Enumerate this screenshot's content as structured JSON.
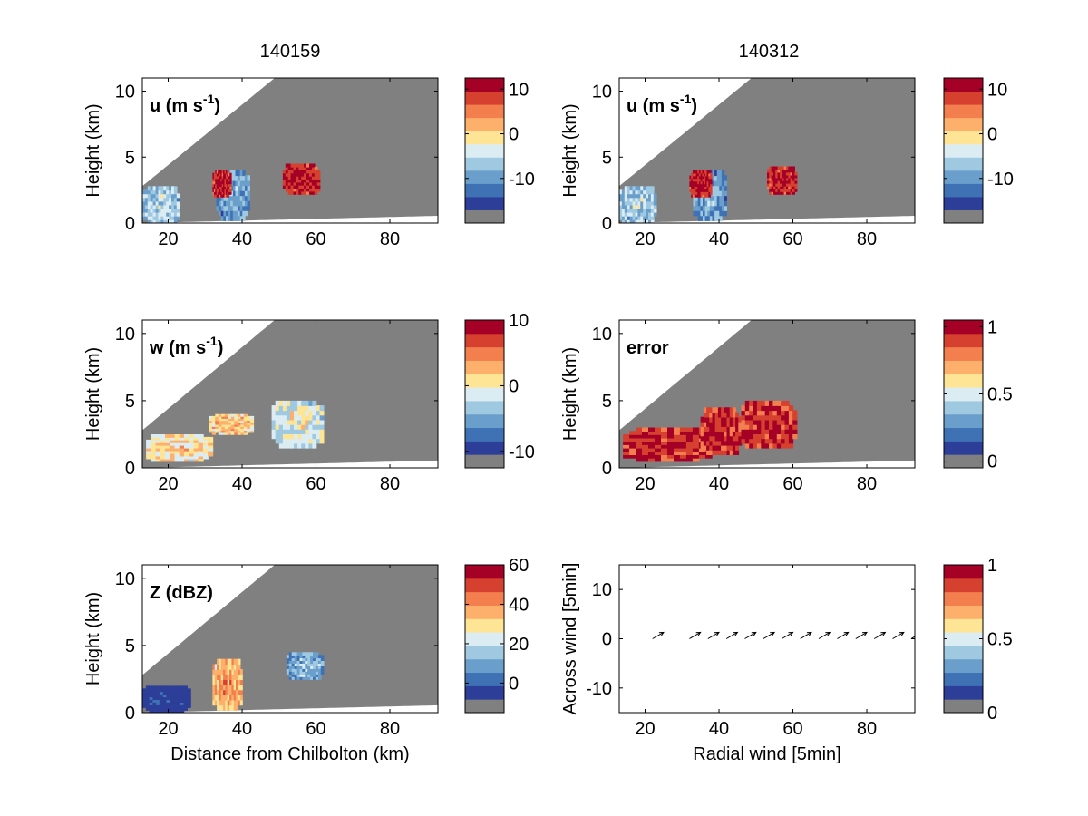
{
  "figure": {
    "column_titles": [
      "140159",
      "140312"
    ],
    "cbar_colors": [
      "#808080",
      "#2d3e98",
      "#3f72b5",
      "#6b9fcb",
      "#9fc9e1",
      "#dcecf3",
      "#fde595",
      "#fdb06b",
      "#f37e4e",
      "#d6402f",
      "#a50026"
    ],
    "sector_color": "#808080",
    "panels": [
      {
        "id": "u-140159",
        "label": "u (m s",
        "label_sup": "-1",
        "label_tail": ")",
        "ylabel": "Height (km)",
        "xlabel": "",
        "xticks": [
          "20",
          "40",
          "60",
          "80"
        ],
        "yticks": [
          "0",
          "5",
          "10"
        ],
        "cbar_ticks": [
          {
            "value": 10,
            "label": "10"
          },
          {
            "value": 0,
            "label": "0"
          },
          {
            "value": -10,
            "label": "-10"
          }
        ],
        "cbar_range": [
          -20,
          12.5
        ]
      },
      {
        "id": "u-140312",
        "label": "u (m s",
        "label_sup": "-1",
        "label_tail": ")",
        "ylabel": "Height (km)",
        "xlabel": "",
        "xticks": [
          "20",
          "40",
          "60",
          "80"
        ],
        "yticks": [
          "0",
          "5",
          "10"
        ],
        "cbar_ticks": [
          {
            "value": 10,
            "label": "10"
          },
          {
            "value": 0,
            "label": "0"
          },
          {
            "value": -10,
            "label": "-10"
          }
        ],
        "cbar_range": [
          -20,
          12.5
        ]
      },
      {
        "id": "w-140159",
        "label": "w (m s",
        "label_sup": "-1",
        "label_tail": ")",
        "ylabel": "Height (km)",
        "xlabel": "",
        "xticks": [
          "20",
          "40",
          "60",
          "80"
        ],
        "yticks": [
          "0",
          "5",
          "10"
        ],
        "cbar_ticks": [
          {
            "value": 10,
            "label": "10"
          },
          {
            "value": 0,
            "label": "0"
          },
          {
            "value": -10,
            "label": "-10"
          }
        ],
        "cbar_range": [
          -12.5,
          10
        ]
      },
      {
        "id": "error-140312",
        "label": "error",
        "label_sup": "",
        "label_tail": "",
        "ylabel": "Height (km)",
        "xlabel": "",
        "xticks": [
          "20",
          "40",
          "60",
          "80"
        ],
        "yticks": [
          "0",
          "5",
          "10"
        ],
        "cbar_ticks": [
          {
            "value": 1,
            "label": "1"
          },
          {
            "value": 0.5,
            "label": "0.5"
          },
          {
            "value": 0,
            "label": "0"
          }
        ],
        "cbar_range": [
          -0.05,
          1.05
        ]
      },
      {
        "id": "z-140159",
        "label": "Z (dBZ)",
        "label_sup": "",
        "label_tail": "",
        "ylabel": "Height (km)",
        "xlabel": "Distance from Chilbolton (km)",
        "xticks": [
          "20",
          "40",
          "60",
          "80"
        ],
        "yticks": [
          "0",
          "5",
          "10"
        ],
        "cbar_ticks": [
          {
            "value": 60,
            "label": "60"
          },
          {
            "value": 40,
            "label": "40"
          },
          {
            "value": 20,
            "label": "20"
          },
          {
            "value": 0,
            "label": "0"
          }
        ],
        "cbar_range": [
          -15,
          60
        ]
      },
      {
        "id": "wind-arrows",
        "label": "",
        "label_sup": "",
        "label_tail": "",
        "ylabel": "Across wind [5min]",
        "xlabel": "Radial wind [5min]",
        "xticks": [
          "20",
          "40",
          "60",
          "80"
        ],
        "yticks": [
          "10",
          "0",
          "-10"
        ],
        "cbar_ticks": [
          {
            "value": 1,
            "label": "1"
          },
          {
            "value": 0.5,
            "label": "0.5"
          },
          {
            "value": 0,
            "label": "0"
          }
        ],
        "cbar_range": [
          0,
          1
        ]
      }
    ]
  },
  "chart_data": [
    {
      "type": "heatmap",
      "title": "140159",
      "label": "u (m s-1)",
      "xlabel": "",
      "ylabel": "Height (km)",
      "xlim": [
        13,
        93
      ],
      "ylim": [
        0,
        11
      ],
      "colorbar": {
        "ticks": [
          10,
          0,
          -10
        ],
        "range": [
          -20,
          12.5
        ]
      },
      "features": [
        {
          "x_range": [
            13,
            23
          ],
          "z_range": [
            0,
            2.8
          ],
          "value": -5
        },
        {
          "x_range": [
            33,
            42
          ],
          "z_range": [
            0.2,
            4
          ],
          "value": -8
        },
        {
          "x_range": [
            32,
            37
          ],
          "z_range": [
            2,
            4
          ],
          "value": 12
        },
        {
          "x_range": [
            51,
            61
          ],
          "z_range": [
            2.2,
            4.5
          ],
          "value": 12
        }
      ]
    },
    {
      "type": "heatmap",
      "title": "140312",
      "label": "u (m s-1)",
      "xlabel": "",
      "ylabel": "Height (km)",
      "xlim": [
        13,
        93
      ],
      "ylim": [
        0,
        11
      ],
      "colorbar": {
        "ticks": [
          10,
          0,
          -10
        ],
        "range": [
          -20,
          12.5
        ]
      },
      "features": [
        {
          "x_range": [
            13,
            23
          ],
          "z_range": [
            0,
            2.8
          ],
          "value": -5
        },
        {
          "x_range": [
            33,
            42
          ],
          "z_range": [
            0.2,
            4
          ],
          "value": -8
        },
        {
          "x_range": [
            32,
            38
          ],
          "z_range": [
            2,
            4
          ],
          "value": 12
        },
        {
          "x_range": [
            53,
            61
          ],
          "z_range": [
            2.2,
            4.3
          ],
          "value": 12
        }
      ]
    },
    {
      "type": "heatmap",
      "title": "",
      "label": "w (m s-1)",
      "xlabel": "",
      "ylabel": "Height (km)",
      "xlim": [
        13,
        93
      ],
      "ylim": [
        0,
        11
      ],
      "colorbar": {
        "ticks": [
          10,
          0,
          -10
        ],
        "range": [
          -12.5,
          10
        ]
      },
      "features": [
        {
          "x_range": [
            14,
            32
          ],
          "z_range": [
            0.5,
            2.5
          ],
          "value": 2
        },
        {
          "x_range": [
            31,
            43
          ],
          "z_range": [
            2.5,
            4
          ],
          "value": 3
        },
        {
          "x_range": [
            48,
            62
          ],
          "z_range": [
            1.5,
            5
          ],
          "value": 0
        }
      ]
    },
    {
      "type": "heatmap",
      "title": "",
      "label": "error",
      "xlabel": "",
      "ylabel": "Height (km)",
      "xlim": [
        13,
        93
      ],
      "ylim": [
        0,
        11
      ],
      "colorbar": {
        "ticks": [
          1,
          0.5,
          0
        ],
        "range": [
          -0.05,
          1.05
        ]
      },
      "features": [
        {
          "x_range": [
            14,
            38
          ],
          "z_range": [
            0.5,
            3
          ],
          "value": 1
        },
        {
          "x_range": [
            35,
            46
          ],
          "z_range": [
            1,
            4.5
          ],
          "value": 1
        },
        {
          "x_range": [
            46,
            61
          ],
          "z_range": [
            1.5,
            5
          ],
          "value": 1
        }
      ]
    },
    {
      "type": "heatmap",
      "title": "",
      "label": "Z (dBZ)",
      "xlabel": "Distance from Chilbolton (km)",
      "ylabel": "Height (km)",
      "xlim": [
        13,
        93
      ],
      "ylim": [
        0,
        11
      ],
      "colorbar": {
        "ticks": [
          60,
          40,
          20,
          0
        ],
        "range": [
          -15,
          60
        ]
      },
      "features": [
        {
          "x_range": [
            32,
            40
          ],
          "z_range": [
            0.2,
            4
          ],
          "value": 40
        },
        {
          "x_range": [
            52,
            62
          ],
          "z_range": [
            2.5,
            4.5
          ],
          "value": 15
        },
        {
          "x_range": [
            13,
            26
          ],
          "z_range": [
            0,
            2
          ],
          "value": -5
        }
      ]
    },
    {
      "type": "scatter",
      "title": "",
      "label": "",
      "xlabel": "Radial wind [5min]",
      "ylabel": "Across wind [5min]",
      "xlim": [
        13,
        93
      ],
      "ylim": [
        -15,
        15
      ],
      "colorbar": {
        "ticks": [
          1,
          0.5,
          0
        ],
        "range": [
          0,
          1
        ]
      },
      "x": [
        22,
        32,
        37,
        42,
        47,
        52,
        57,
        62,
        67,
        72,
        77,
        82,
        87,
        92
      ],
      "y": [
        0,
        0,
        0,
        0,
        0,
        0,
        0,
        0,
        0,
        0,
        0,
        0,
        0,
        0
      ],
      "u": [
        3,
        3,
        3,
        3,
        3,
        3,
        3,
        3,
        3,
        3,
        3,
        3,
        3,
        3
      ],
      "v": [
        1.3,
        1.3,
        1.3,
        1.3,
        1.3,
        1.3,
        1.3,
        1.3,
        1.3,
        1.3,
        1.3,
        1.3,
        1.3,
        1.3
      ]
    }
  ]
}
